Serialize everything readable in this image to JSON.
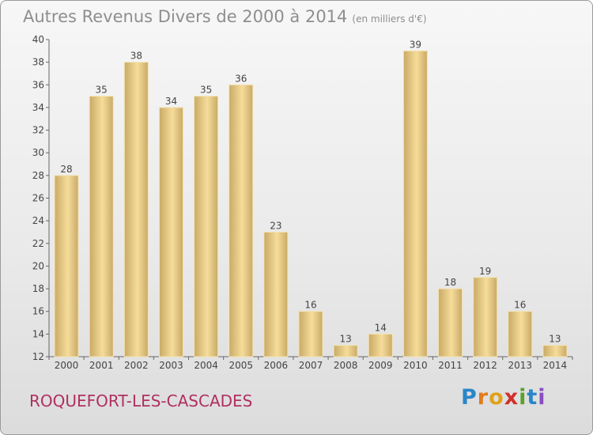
{
  "chart_data": {
    "type": "bar",
    "title": "Autres Revenus Divers de 2000 à 2014",
    "subtitle": "(en milliers d'€)",
    "xlabel": "",
    "ylabel": "",
    "categories": [
      "2000",
      "2001",
      "2002",
      "2003",
      "2004",
      "2005",
      "2006",
      "2007",
      "2008",
      "2009",
      "2010",
      "2011",
      "2012",
      "2013",
      "2014"
    ],
    "values": [
      28,
      35,
      38,
      34,
      35,
      36,
      23,
      16,
      13,
      14,
      39,
      18,
      19,
      16,
      13
    ],
    "ylim": [
      12,
      40
    ],
    "yticks": [
      12,
      14,
      16,
      18,
      20,
      22,
      24,
      26,
      28,
      30,
      32,
      34,
      36,
      38,
      40
    ],
    "grid": false,
    "colors": {
      "bar_light": "#f6dc9a",
      "bar_dark": "#c9aa66",
      "bar_edge": "#f3e3b4"
    }
  },
  "footer": {
    "place": "ROQUEFORT-LES-CASCADES",
    "logo_letters": [
      "P",
      "r",
      "o",
      "x",
      "i",
      "t",
      "i"
    ]
  }
}
